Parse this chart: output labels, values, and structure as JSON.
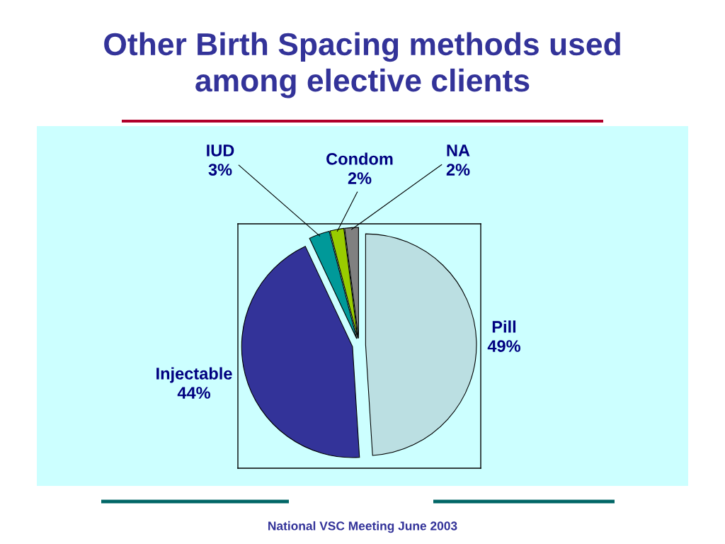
{
  "chart_data": {
    "type": "pie",
    "title": "Other Birth Spacing methods used\namong elective clients",
    "categories": [
      "Pill",
      "Injectable",
      "IUD",
      "Condom",
      "NA"
    ],
    "values": [
      49,
      44,
      3,
      2,
      2
    ],
    "value_labels": [
      "49%",
      "44%",
      "3%",
      "2%",
      "2%"
    ],
    "colors": [
      "#bbdfe2",
      "#333399",
      "#009999",
      "#99cc00",
      "#808080"
    ],
    "annotations": [
      "National VSC Meeting June 2003"
    ]
  }
}
